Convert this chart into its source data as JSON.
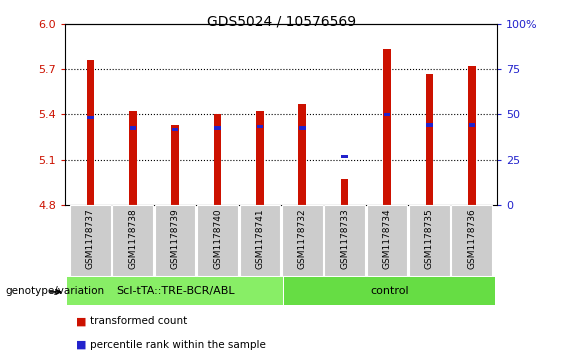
{
  "title": "GDS5024 / 10576569",
  "samples": [
    "GSM1178737",
    "GSM1178738",
    "GSM1178739",
    "GSM1178740",
    "GSM1178741",
    "GSM1178732",
    "GSM1178733",
    "GSM1178734",
    "GSM1178735",
    "GSM1178736"
  ],
  "bar_base": 4.8,
  "bar_tops": [
    5.76,
    5.42,
    5.33,
    5.4,
    5.42,
    5.47,
    4.97,
    5.83,
    5.67,
    5.72
  ],
  "blue_values": [
    5.38,
    5.31,
    5.3,
    5.31,
    5.32,
    5.31,
    5.12,
    5.4,
    5.33,
    5.33
  ],
  "ylim": [
    4.8,
    6.0
  ],
  "yticks": [
    4.8,
    5.1,
    5.4,
    5.7,
    6.0
  ],
  "y2ticks_vals": [
    0,
    25,
    50,
    75,
    100
  ],
  "y2ticks_labels": [
    "0",
    "25",
    "50",
    "75",
    "100%"
  ],
  "bar_color": "#cc1100",
  "blue_color": "#2222cc",
  "sample_bg_color": "#cccccc",
  "group1_color": "#88ee66",
  "group2_color": "#66dd44",
  "group1_label": "ScI-tTA::TRE-BCR/ABL",
  "group2_label": "control",
  "group1_count": 5,
  "group2_count": 5,
  "genotype_label": "genotype/variation",
  "legend_red": "transformed count",
  "legend_blue": "percentile rank within the sample",
  "bar_width": 0.18,
  "dotgrid_vals": [
    5.1,
    5.4,
    5.7
  ]
}
